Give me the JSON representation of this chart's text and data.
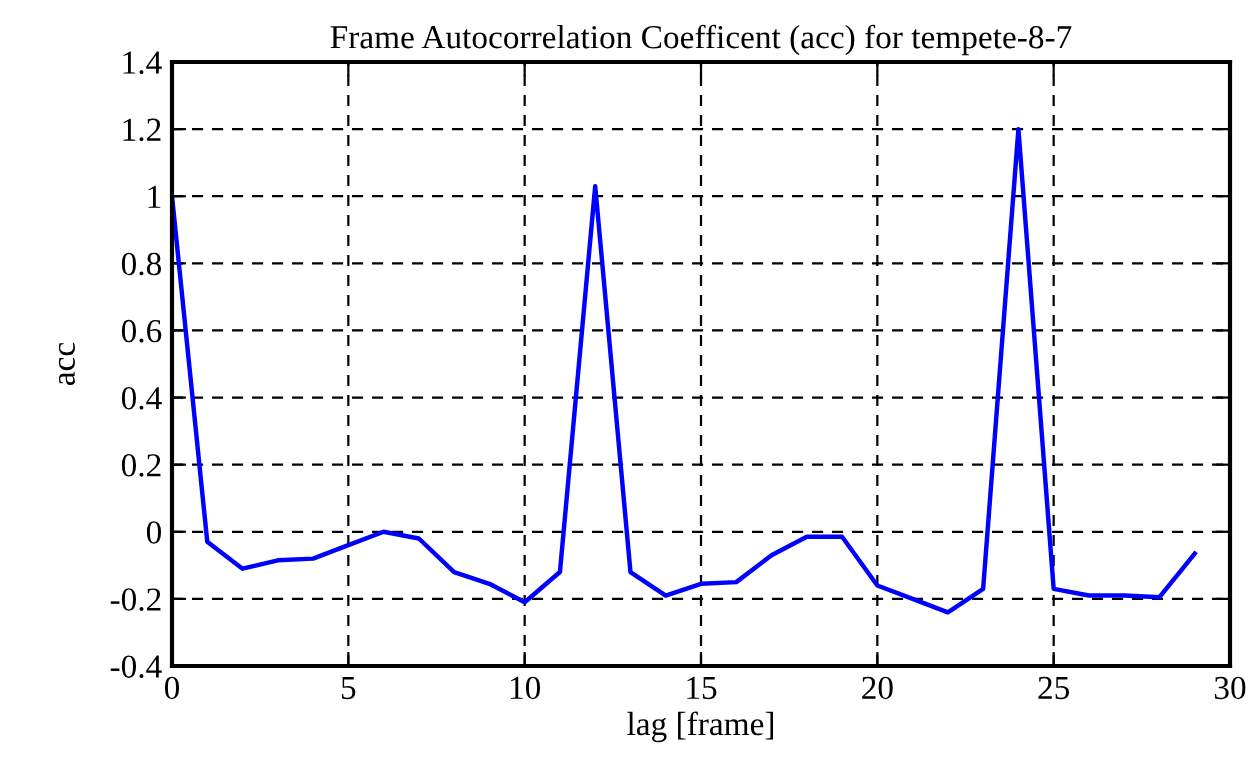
{
  "chart_data": {
    "type": "line",
    "title": "Frame Autocorrelation Coefficent (acc) for tempete-8-7",
    "xlabel": "lag [frame]",
    "ylabel": "acc",
    "x": [
      0,
      1,
      2,
      3,
      4,
      5,
      6,
      7,
      8,
      9,
      10,
      11,
      12,
      13,
      14,
      15,
      16,
      17,
      18,
      19,
      20,
      21,
      22,
      23,
      24,
      25,
      26,
      27,
      28,
      29
    ],
    "series": [
      {
        "color": "#0000ff",
        "values": [
          1.0,
          -0.03,
          -0.11,
          -0.085,
          -0.08,
          -0.04,
          0.0,
          -0.02,
          -0.12,
          -0.155,
          -0.21,
          -0.12,
          1.03,
          -0.12,
          -0.19,
          -0.155,
          -0.15,
          -0.07,
          -0.015,
          -0.015,
          -0.16,
          -0.2,
          -0.24,
          -0.17,
          1.2,
          -0.17,
          -0.19,
          -0.19,
          -0.195,
          -0.065
        ]
      }
    ],
    "xlim": [
      0,
      30
    ],
    "xticks": [
      0,
      5,
      10,
      15,
      20,
      25,
      30
    ],
    "ylim": [
      -0.4,
      1.4
    ],
    "yticks": [
      {
        "value": -0.4,
        "label": "-0.4"
      },
      {
        "value": -0.2,
        "label": "-0.2"
      },
      0,
      0.2,
      0.4,
      0.6,
      0.8,
      1,
      1.2,
      1.4
    ],
    "grid": true,
    "line_style": "solid",
    "legend": false
  }
}
